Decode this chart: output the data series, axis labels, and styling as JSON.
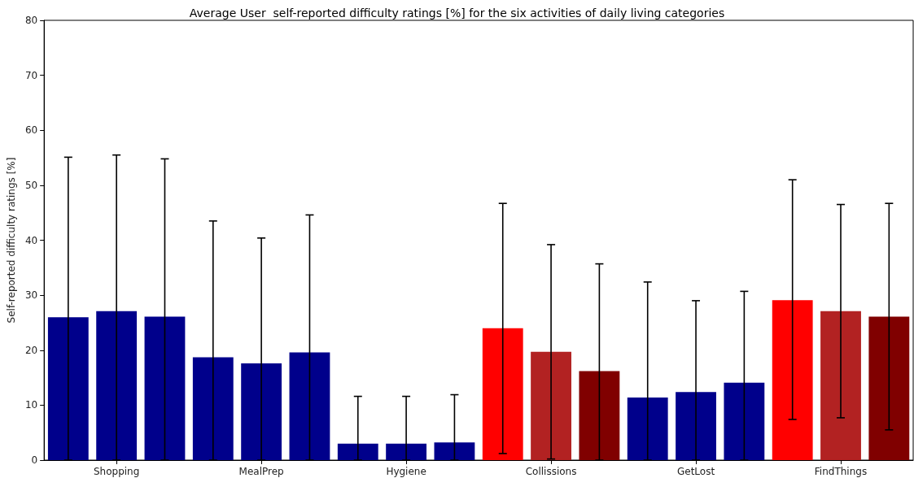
{
  "chart_data": {
    "type": "bar",
    "title": "Average User  self-reported difficulty ratings [%] for the six activities of daily living categories",
    "ylabel": "Self-reported difficulty ratings [%]",
    "categories": [
      null,
      "Shopping",
      null,
      null,
      "MealPrep",
      null,
      null,
      "Hygiene",
      null,
      null,
      "Collissions",
      null,
      null,
      "GetLost",
      null,
      null,
      "FindThings",
      null
    ],
    "values": [
      26.0,
      27.1,
      26.1,
      18.7,
      17.6,
      19.6,
      3.0,
      3.0,
      3.2,
      24.0,
      19.7,
      16.2,
      11.4,
      12.4,
      14.1,
      29.1,
      27.1,
      26.1
    ],
    "colors": [
      "#00008b",
      "#00008b",
      "#00008b",
      "#00008b",
      "#00008b",
      "#00008b",
      "#00008b",
      "#00008b",
      "#00008b",
      "#ff0000",
      "#b22222",
      "#800000",
      "#00008b",
      "#00008b",
      "#00008b",
      "#ff0000",
      "#b22222",
      "#800000"
    ],
    "errors": [
      [
        0,
        55.1
      ],
      [
        0,
        55.5
      ],
      [
        0,
        54.8
      ],
      [
        0,
        43.5
      ],
      [
        0,
        40.4
      ],
      [
        0,
        44.6
      ],
      [
        0,
        11.6
      ],
      [
        0,
        11.6
      ],
      [
        0,
        11.9
      ],
      [
        1.2,
        46.7
      ],
      [
        0.2,
        39.2
      ],
      [
        0,
        35.7
      ],
      [
        0,
        32.4
      ],
      [
        0,
        29.0
      ],
      [
        0,
        30.7
      ],
      [
        7.4,
        51.0
      ],
      [
        7.7,
        46.5
      ],
      [
        5.5,
        46.7
      ]
    ],
    "ylim": [
      0,
      80
    ],
    "yticks": [
      0,
      10,
      20,
      30,
      40,
      50,
      60,
      70,
      80
    ],
    "grid": false
  }
}
